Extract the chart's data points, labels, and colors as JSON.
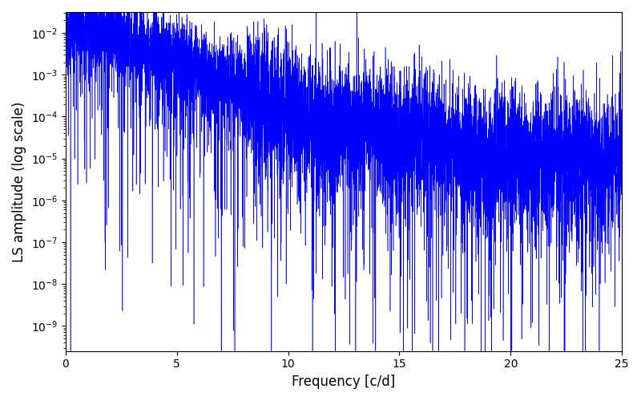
{
  "title": "",
  "xlabel": "Frequency [c/d]",
  "ylabel": "LS amplitude (log scale)",
  "xlim": [
    0,
    25
  ],
  "ylim_log": [
    -9.6,
    -1.5
  ],
  "color": "#0000ff",
  "background_color": "#ffffff",
  "figsize": [
    8.0,
    5.0
  ],
  "dpi": 100,
  "freq_min": 0.0,
  "freq_max": 25.0,
  "n_points": 8000,
  "seed": 12345
}
